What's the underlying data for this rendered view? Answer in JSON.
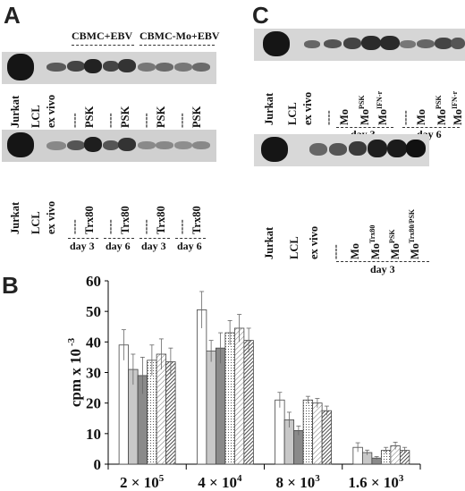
{
  "panels": {
    "A": {
      "letter": "A",
      "headers": [
        "CBMC+EBV",
        "CBMC-Mo+EBV"
      ],
      "top_lanes": [
        "Jurkat",
        "LCL",
        "ex vivo",
        "----",
        "PSK",
        "----",
        "PSK",
        "----",
        "PSK",
        "----",
        "PSK"
      ],
      "bottom_lanes": [
        "Jurkat",
        "LCL",
        "ex vivo",
        "----",
        "Trx80",
        "----",
        "Trx80",
        "----",
        "Trx80",
        "----",
        "Trx80"
      ],
      "days": [
        "day 3",
        "day 6",
        "day 3",
        "day 6"
      ]
    },
    "C": {
      "letter": "C",
      "top_lanes": [
        "Jurkat",
        "LCL",
        "ex vivo",
        "----",
        "Mo",
        "Mo",
        "Mo",
        "----",
        "Mo",
        "Mo",
        "Mo"
      ],
      "top_sups": [
        "",
        "",
        "",
        "",
        "",
        "PSK",
        "IFN-r",
        "",
        "",
        "PSK",
        "IFN-r"
      ],
      "top_days": [
        "day 3",
        "day 6"
      ],
      "bottom_lanes": [
        "Jurkat",
        "LCL",
        "ex vivo",
        "----",
        "Mo",
        "Mo",
        "Mo",
        "Mo"
      ],
      "bottom_sups": [
        "",
        "",
        "",
        "",
        "",
        "Trx80",
        "PSK",
        "Trx80/PSK"
      ],
      "bottom_day": "day 3"
    },
    "B": {
      "letter": "B"
    }
  },
  "chart_data": {
    "type": "bar",
    "ylabel": "cpm x 10",
    "ylabel_exp": "-3",
    "ylim": [
      0,
      60
    ],
    "yticks": [
      "0",
      "10",
      "20",
      "30",
      "40",
      "50",
      "60"
    ],
    "categories": [
      "2 × 10^5",
      "4 × 10^4",
      "8 × 10^3",
      "1.6 × 10^3"
    ],
    "category_bases": [
      "2 × 10",
      "4 × 10",
      "8 × 10",
      "1.6 × 10"
    ],
    "category_exps": [
      "5",
      "4",
      "3",
      "3"
    ],
    "series": [
      {
        "values": [
          39,
          50.5,
          21,
          5.5
        ],
        "errors": [
          5,
          6,
          2.5,
          1.5
        ],
        "fill": "#ffffff",
        "pattern": "none"
      },
      {
        "values": [
          31,
          37,
          14.5,
          3.8
        ],
        "errors": [
          5,
          3.5,
          2.5,
          0.8
        ],
        "fill": "#c8c8c8",
        "pattern": "none"
      },
      {
        "values": [
          29,
          38,
          11,
          2
        ],
        "errors": [
          6,
          5,
          1.5,
          0.5
        ],
        "fill": "#8a8a8a",
        "pattern": "none"
      },
      {
        "values": [
          34,
          43,
          21,
          4.5
        ],
        "errors": [
          5,
          4,
          1.2,
          1
        ],
        "fill": "#ffffff",
        "pattern": "dots"
      },
      {
        "values": [
          36,
          44.5,
          20,
          6
        ],
        "errors": [
          5,
          4.5,
          1.5,
          1.2
        ],
        "fill": "#ffffff",
        "pattern": "hatch-light"
      },
      {
        "values": [
          33.5,
          40.5,
          17.5,
          4.5
        ],
        "errors": [
          4.5,
          4,
          1.5,
          1
        ],
        "fill": "#ffffff",
        "pattern": "hatch-dense"
      }
    ]
  }
}
